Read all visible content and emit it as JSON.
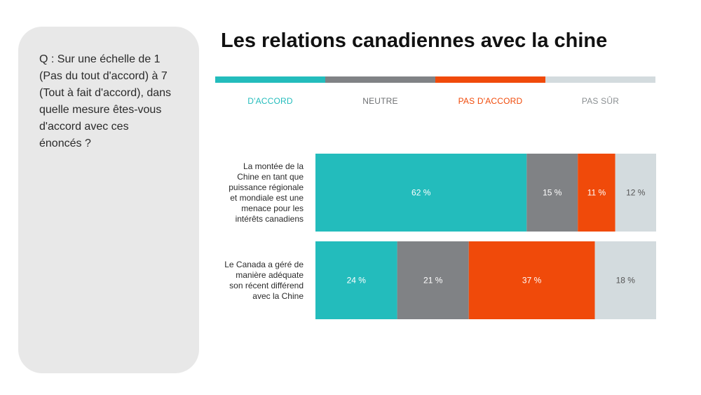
{
  "question": {
    "lines": [
      "Q : Sur une échelle de 1",
      "(Pas du tout d'accord) à 7",
      "(Tout à fait d'accord), dans",
      "quelle mesure êtes-vous",
      "d'accord avec ces",
      "énoncés ?"
    ]
  },
  "chart_data": {
    "type": "bar",
    "orientation": "horizontal",
    "stacked": true,
    "title": "Les relations canadiennes avec la chine",
    "legend_position": "top",
    "categories": [
      {
        "label": "La montée de la Chine en tant que puissance régionale et mondiale est une menace pour les intérêts canadiens",
        "lines": [
          "La montée de la",
          "Chine en tant que",
          "puissance régionale",
          "et mondiale est une",
          "menace pour les",
          "intérêts canadiens"
        ]
      },
      {
        "label": "Le Canada a géré de manière adéquate son récent différend avec la Chine",
        "lines": [
          "Le Canada a géré de",
          "manière adéquate",
          "son récent différend",
          "avec la Chine"
        ]
      }
    ],
    "series": [
      {
        "name": "D'ACCORD",
        "color": "#23bcbc",
        "text_color": "#ffffff",
        "values": [
          62,
          24
        ],
        "labels": [
          "62 %",
          "24 %"
        ]
      },
      {
        "name": "NEUTRE",
        "color": "#808285",
        "text_color": "#ffffff",
        "values": [
          15,
          21
        ],
        "labels": [
          "15 %",
          "21 %"
        ]
      },
      {
        "name": "PAS D'ACCORD",
        "color": "#f04a0a",
        "text_color": "#ffffff",
        "values": [
          11,
          37
        ],
        "labels": [
          "11 %",
          "37 %"
        ]
      },
      {
        "name": "PAS SÛR",
        "color": "#d3dbde",
        "text_color": "#555555",
        "values": [
          12,
          18
        ],
        "labels": [
          "12 %",
          "18 %"
        ]
      }
    ],
    "xlim": [
      0,
      100
    ],
    "grid": false
  }
}
